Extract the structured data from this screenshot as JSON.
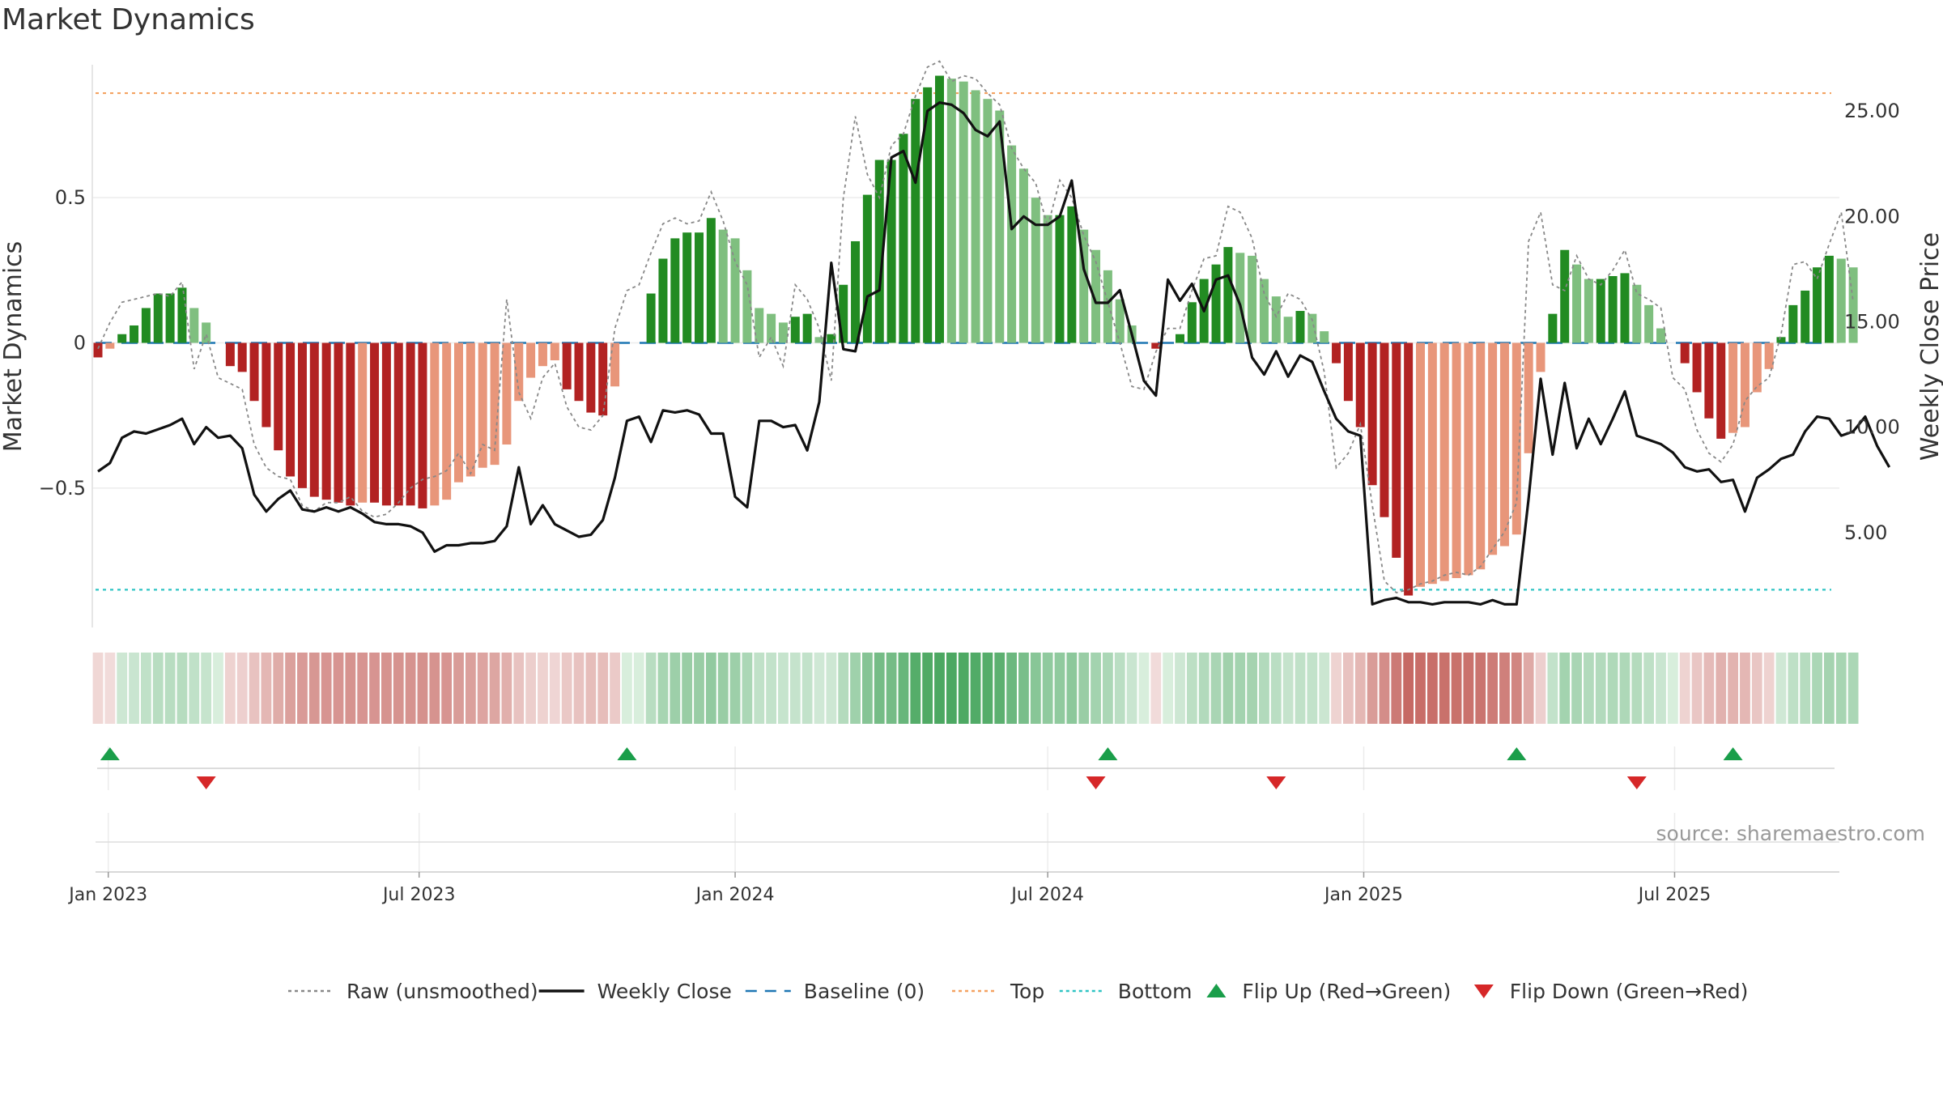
{
  "title": "Market Dynamics",
  "source": "source: sharemaestro.com",
  "colors": {
    "strong_green": "#228b22",
    "light_green": "#7fbf7f",
    "strong_red": "#b22222",
    "light_red": "#e8967a",
    "close_line": "#111111",
    "raw_line": "#888888",
    "baseline": "#1f77b4",
    "top": "#f4a261",
    "bottom": "#2ec4c4",
    "flip_up": "#1a9e4a",
    "flip_down": "#d62728"
  },
  "chart_data": {
    "type": "bar",
    "title": "Market Dynamics",
    "ylabel_left": "Market Dynamics",
    "ylabel_right": "Weekly Close Price",
    "ylim_left": [
      -0.98,
      0.98
    ],
    "ylim_right": [
      0.5,
      27.5
    ],
    "left_ticks": [
      {
        "v": 0.5,
        "label": "0.5"
      },
      {
        "v": 0,
        "label": "0"
      },
      {
        "v": -0.5,
        "label": "−0.5"
      }
    ],
    "right_ticks": [
      {
        "v": 25,
        "label": "25.00"
      },
      {
        "v": 20,
        "label": "20.00"
      },
      {
        "v": 15,
        "label": "15.00"
      },
      {
        "v": 10,
        "label": "10.00"
      },
      {
        "v": 5,
        "label": "5.00"
      }
    ],
    "x_ticks": [
      "Jan 2023",
      "Jul 2023",
      "Jan 2024",
      "Jul 2024",
      "Jan 2025",
      "Jul 2025"
    ],
    "top_level": 0.86,
    "bottom_level": -0.85,
    "baseline_level": 0,
    "weeks": 144,
    "first_week": "2022-12-26",
    "dynamics": [
      -0.05,
      -0.02,
      0.03,
      0.06,
      0.12,
      0.17,
      0.17,
      0.19,
      0.12,
      0.07,
      0,
      -0.08,
      -0.1,
      -0.2,
      -0.29,
      -0.37,
      -0.46,
      -0.5,
      -0.53,
      -0.54,
      -0.55,
      -0.56,
      -0.55,
      -0.55,
      -0.56,
      -0.56,
      -0.56,
      -0.57,
      -0.56,
      -0.54,
      -0.48,
      -0.46,
      -0.43,
      -0.42,
      -0.35,
      -0.2,
      -0.12,
      -0.08,
      -0.06,
      -0.16,
      -0.2,
      -0.24,
      -0.25,
      -0.15,
      0,
      0,
      0.17,
      0.29,
      0.36,
      0.38,
      0.38,
      0.43,
      0.39,
      0.36,
      0.25,
      0.12,
      0.1,
      0.07,
      0.09,
      0.1,
      0.02,
      0.03,
      0.2,
      0.35,
      0.51,
      0.63,
      0.63,
      0.72,
      0.84,
      0.88,
      0.92,
      0.91,
      0.9,
      0.87,
      0.84,
      0.8,
      0.68,
      0.6,
      0.5,
      0.44,
      0.44,
      0.47,
      0.39,
      0.32,
      0.25,
      0.15,
      0.06,
      0,
      -0.02,
      0,
      0.03,
      0.14,
      0.22,
      0.27,
      0.33,
      0.31,
      0.3,
      0.22,
      0.16,
      0.09,
      0.11,
      0.1,
      0.04,
      -0.07,
      -0.2,
      -0.29,
      -0.49,
      -0.6,
      -0.74,
      -0.87,
      -0.84,
      -0.83,
      -0.82,
      -0.81,
      -0.8,
      -0.78,
      -0.73,
      -0.7,
      -0.66,
      -0.38,
      -0.1,
      0.1,
      0.32,
      0.27,
      0.22,
      0.22,
      0.23,
      0.24,
      0.2,
      0.13,
      0.05,
      0,
      -0.07,
      -0.17,
      -0.26,
      -0.33,
      -0.31,
      -0.29,
      -0.17,
      -0.09,
      0.02,
      0.13,
      0.18,
      0.26,
      0.3,
      0.29,
      0.26
    ],
    "raw": [
      -0.02,
      0.07,
      0.14,
      0.15,
      0.16,
      0.17,
      0.16,
      0.21,
      -0.09,
      0.03,
      -0.12,
      -0.14,
      -0.16,
      -0.35,
      -0.43,
      -0.46,
      -0.47,
      -0.56,
      -0.58,
      -0.55,
      -0.55,
      -0.53,
      -0.58,
      -0.6,
      -0.59,
      -0.55,
      -0.5,
      -0.47,
      -0.46,
      -0.44,
      -0.38,
      -0.45,
      -0.35,
      -0.37,
      0.15,
      -0.17,
      -0.26,
      -0.12,
      -0.07,
      -0.22,
      -0.29,
      -0.3,
      -0.25,
      0.05,
      0.18,
      0.2,
      0.31,
      0.41,
      0.43,
      0.41,
      0.42,
      0.52,
      0.42,
      0.28,
      0.2,
      -0.05,
      0.02,
      -0.08,
      0.2,
      0.15,
      0.05,
      -0.13,
      0.5,
      0.78,
      0.58,
      0.5,
      0.68,
      0.72,
      0.85,
      0.95,
      0.97,
      0.9,
      0.92,
      0.91,
      0.86,
      0.82,
      0.67,
      0.6,
      0.55,
      0.4,
      0.56,
      0.5,
      0.37,
      0.28,
      0.14,
      0,
      -0.15,
      -0.16,
      -0.03,
      0.05,
      0.05,
      0.18,
      0.29,
      0.3,
      0.47,
      0.45,
      0.36,
      0.17,
      0.09,
      0.17,
      0.15,
      0.08,
      -0.1,
      -0.43,
      -0.38,
      -0.28,
      -0.56,
      -0.82,
      -0.86,
      -0.85,
      -0.83,
      -0.82,
      -0.8,
      -0.79,
      -0.8,
      -0.77,
      -0.71,
      -0.65,
      -0.55,
      0.35,
      0.45,
      0.2,
      0.18,
      0.3,
      0.22,
      0.2,
      0.25,
      0.32,
      0.17,
      0.15,
      0.12,
      -0.12,
      -0.16,
      -0.3,
      -0.38,
      -0.41,
      -0.35,
      -0.2,
      -0.15,
      -0.12,
      0.03,
      0.27,
      0.28,
      0.22,
      0.34,
      0.45,
      0.14
    ],
    "close": [
      7.9,
      8.3,
      9.5,
      9.8,
      9.7,
      9.9,
      10.1,
      10.4,
      9.2,
      10.0,
      9.5,
      9.6,
      9.0,
      6.8,
      6.0,
      6.6,
      7.0,
      6.1,
      6.0,
      6.2,
      6.0,
      6.2,
      5.9,
      5.5,
      5.4,
      5.4,
      5.3,
      5.0,
      4.1,
      4.4,
      4.4,
      4.5,
      4.5,
      4.6,
      5.3,
      8.1,
      5.4,
      6.3,
      5.4,
      5.1,
      4.8,
      4.9,
      5.6,
      7.6,
      10.3,
      10.5,
      9.3,
      10.8,
      10.7,
      10.8,
      10.6,
      9.7,
      9.7,
      6.7,
      6.2,
      10.3,
      10.3,
      10.0,
      10.1,
      8.9,
      11.2,
      17.8,
      13.7,
      13.6,
      16.2,
      16.5,
      22.8,
      23.1,
      21.6,
      25.0,
      25.4,
      25.3,
      24.9,
      24.1,
      23.8,
      24.5,
      19.4,
      20.0,
      19.6,
      19.6,
      20.0,
      21.7,
      17.5,
      15.9,
      15.9,
      16.5,
      14.4,
      12.2,
      11.5,
      17.0,
      16.0,
      16.8,
      15.5,
      17.0,
      17.2,
      15.8,
      13.3,
      12.5,
      13.6,
      12.4,
      13.4,
      13.1,
      11.7,
      10.4,
      9.8,
      9.6,
      1.6,
      1.8,
      1.9,
      1.7,
      1.7,
      1.6,
      1.7,
      1.7,
      1.7,
      1.6,
      1.8,
      1.6,
      1.6,
      6.6,
      12.3,
      8.7,
      12.1,
      9.0,
      10.4,
      9.2,
      10.4,
      11.7,
      9.6,
      9.4,
      9.2,
      8.8,
      8.1,
      7.9,
      8.0,
      7.4,
      7.5,
      6.0,
      7.6,
      8.0,
      8.5,
      8.7,
      9.8,
      10.5,
      10.4,
      9.6,
      9.8,
      10.5,
      9.1,
      8.1
    ],
    "flip_up": [
      "2023-01-02",
      "2023-10-30",
      "2024-08-05",
      "2025-03-31",
      "2025-08-04"
    ],
    "flip_down": [
      "2023-02-27",
      "2024-07-29",
      "2024-11-11",
      "2025-06-09"
    ]
  },
  "legend": [
    {
      "label": "Raw (unsmoothed)",
      "kind": "dotted",
      "color": "#888888"
    },
    {
      "label": "Weekly Close",
      "kind": "solid",
      "color": "#111111"
    },
    {
      "label": "Baseline (0)",
      "kind": "dashed",
      "color": "#1f77b4"
    },
    {
      "label": "Top",
      "kind": "dotted",
      "color": "#f4a261"
    },
    {
      "label": "Bottom",
      "kind": "dotted",
      "color": "#2ec4c4"
    },
    {
      "label": "Flip Up (Red→Green)",
      "kind": "up",
      "color": "#1a9e4a"
    },
    {
      "label": "Flip Down (Green→Red)",
      "kind": "down",
      "color": "#d62728"
    }
  ]
}
